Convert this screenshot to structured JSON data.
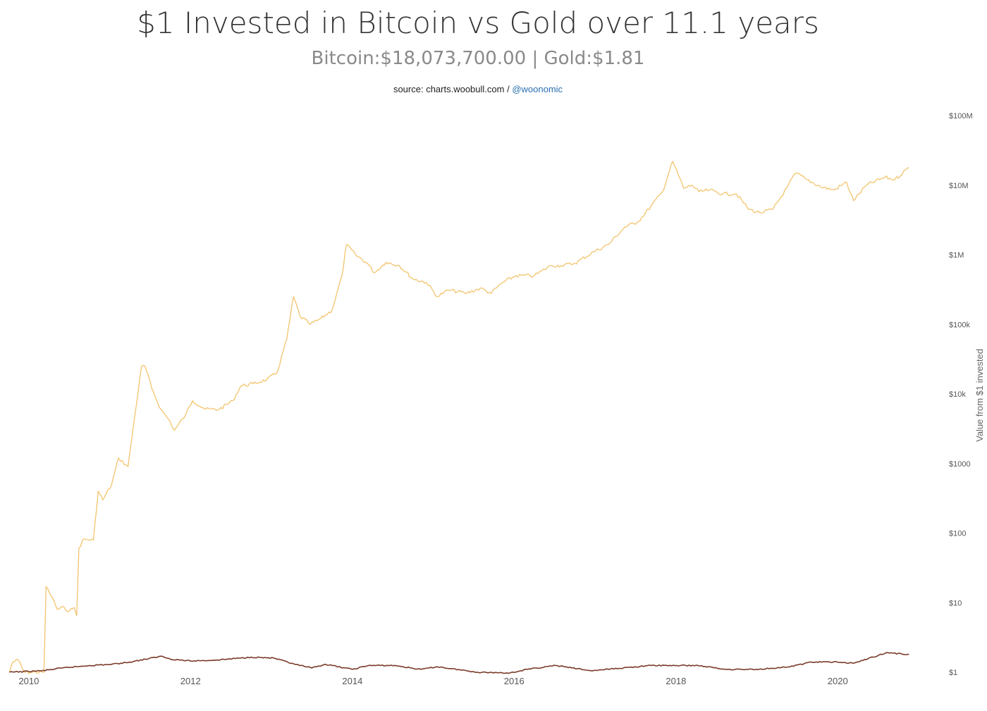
{
  "chart_data": {
    "type": "line",
    "title": "$1 Invested in Bitcoin vs Gold over 11.1 years",
    "subtitle": "Bitcoin:$18,073,700.00 | Gold:$1.81",
    "source": {
      "text": "source: charts.woobull.com / ",
      "handle": "@woonomic"
    },
    "ylabel": "Value from $1 invested",
    "yscale": "log",
    "ylim": [
      1,
      100000000
    ],
    "xlim": [
      "2009-10-01",
      "2020-11-20"
    ],
    "y_ticks": [
      "$1",
      "$10",
      "$100",
      "$1000",
      "$10k",
      "$100k",
      "$1M",
      "$10M",
      "$100M"
    ],
    "x_ticks": [
      "2010",
      "2012",
      "2014",
      "2016",
      "2018",
      "2020"
    ],
    "grid": false,
    "legend": "none",
    "series": [
      {
        "color": "#f2c46d",
        "points": [
          [
            "2009-10-05",
            1.0
          ],
          [
            "2009-10-20",
            1.4
          ],
          [
            "2009-11-15",
            1.5
          ],
          [
            "2009-12-10",
            1.0
          ],
          [
            "2010-01-15",
            1.0
          ],
          [
            "2010-03-10",
            1.0
          ],
          [
            "2010-03-20",
            17
          ],
          [
            "2010-04-15",
            12
          ],
          [
            "2010-05-10",
            8
          ],
          [
            "2010-06-10",
            8.5
          ],
          [
            "2010-07-01",
            7.5
          ],
          [
            "2010-07-25",
            8.5
          ],
          [
            "2010-08-05",
            6.5
          ],
          [
            "2010-08-15",
            60
          ],
          [
            "2010-09-01",
            80
          ],
          [
            "2010-10-20",
            80
          ],
          [
            "2010-11-10",
            400
          ],
          [
            "2010-12-01",
            300
          ],
          [
            "2011-01-10",
            500
          ],
          [
            "2011-02-10",
            1200
          ],
          [
            "2011-03-25",
            900
          ],
          [
            "2011-04-25",
            5000
          ],
          [
            "2011-05-25",
            25000
          ],
          [
            "2011-06-10",
            25000
          ],
          [
            "2011-07-10",
            12000
          ],
          [
            "2011-08-20",
            6000
          ],
          [
            "2011-10-01",
            4000
          ],
          [
            "2011-10-20",
            3000
          ],
          [
            "2011-12-10",
            5000
          ],
          [
            "2012-01-10",
            8000
          ],
          [
            "2012-03-10",
            6000
          ],
          [
            "2012-05-10",
            6000
          ],
          [
            "2012-07-10",
            8000
          ],
          [
            "2012-08-15",
            13000
          ],
          [
            "2012-10-10",
            14000
          ],
          [
            "2012-12-10",
            16000
          ],
          [
            "2013-01-25",
            20000
          ],
          [
            "2013-03-10",
            60000
          ],
          [
            "2013-04-10",
            250000
          ],
          [
            "2013-05-10",
            130000
          ],
          [
            "2013-06-25",
            100000
          ],
          [
            "2013-08-10",
            120000
          ],
          [
            "2013-10-01",
            160000
          ],
          [
            "2013-11-15",
            500000
          ],
          [
            "2013-12-05",
            1400000
          ],
          [
            "2014-01-15",
            1000000
          ],
          [
            "2014-03-10",
            750000
          ],
          [
            "2014-04-10",
            550000
          ],
          [
            "2014-06-01",
            780000
          ],
          [
            "2014-08-01",
            700000
          ],
          [
            "2014-10-01",
            450000
          ],
          [
            "2014-12-01",
            400000
          ],
          [
            "2015-01-20",
            250000
          ],
          [
            "2015-03-10",
            310000
          ],
          [
            "2015-06-01",
            280000
          ],
          [
            "2015-08-01",
            330000
          ],
          [
            "2015-09-20",
            280000
          ],
          [
            "2015-11-10",
            400000
          ],
          [
            "2016-01-10",
            500000
          ],
          [
            "2016-04-01",
            500000
          ],
          [
            "2016-06-15",
            700000
          ],
          [
            "2016-08-01",
            700000
          ],
          [
            "2016-10-01",
            750000
          ],
          [
            "2016-12-25",
            1100000
          ],
          [
            "2017-03-01",
            1400000
          ],
          [
            "2017-05-15",
            2500000
          ],
          [
            "2017-07-15",
            3000000
          ],
          [
            "2017-09-10",
            5000000
          ],
          [
            "2017-11-01",
            8000000
          ],
          [
            "2017-12-17",
            22000000
          ],
          [
            "2018-02-05",
            9000000
          ],
          [
            "2018-03-15",
            10000000
          ],
          [
            "2018-04-15",
            8000000
          ],
          [
            "2018-06-01",
            8500000
          ],
          [
            "2018-08-01",
            7500000
          ],
          [
            "2018-10-01",
            7500000
          ],
          [
            "2018-11-25",
            4500000
          ],
          [
            "2019-01-15",
            4000000
          ],
          [
            "2019-03-15",
            4500000
          ],
          [
            "2019-05-15",
            9000000
          ],
          [
            "2019-06-26",
            15000000
          ],
          [
            "2019-08-15",
            12000000
          ],
          [
            "2019-10-15",
            9500000
          ],
          [
            "2019-12-15",
            8500000
          ],
          [
            "2020-02-10",
            11000000
          ],
          [
            "2020-03-12",
            6000000
          ],
          [
            "2020-05-10",
            10000000
          ],
          [
            "2020-08-01",
            13000000
          ],
          [
            "2020-09-15",
            12000000
          ],
          [
            "2020-11-18",
            18000000
          ]
        ]
      },
      {
        "color": "#7a3a28",
        "points": [
          [
            "2009-10-05",
            1.0
          ],
          [
            "2010-03-01",
            1.05
          ],
          [
            "2010-06-01",
            1.15
          ],
          [
            "2010-10-01",
            1.25
          ],
          [
            "2011-01-10",
            1.3
          ],
          [
            "2011-04-01",
            1.4
          ],
          [
            "2011-08-25",
            1.7
          ],
          [
            "2011-10-01",
            1.55
          ],
          [
            "2012-01-01",
            1.45
          ],
          [
            "2012-05-01",
            1.5
          ],
          [
            "2012-10-01",
            1.65
          ],
          [
            "2013-01-10",
            1.6
          ],
          [
            "2013-04-15",
            1.3
          ],
          [
            "2013-07-01",
            1.15
          ],
          [
            "2013-09-01",
            1.3
          ],
          [
            "2013-12-31",
            1.1
          ],
          [
            "2014-03-15",
            1.25
          ],
          [
            "2014-07-10",
            1.25
          ],
          [
            "2014-11-05",
            1.1
          ],
          [
            "2015-01-20",
            1.2
          ],
          [
            "2015-07-20",
            1.0
          ],
          [
            "2015-12-15",
            0.98
          ],
          [
            "2016-03-01",
            1.1
          ],
          [
            "2016-07-06",
            1.25
          ],
          [
            "2016-12-15",
            1.05
          ],
          [
            "2017-09-08",
            1.25
          ],
          [
            "2018-04-10",
            1.25
          ],
          [
            "2018-08-15",
            1.1
          ],
          [
            "2019-01-01",
            1.1
          ],
          [
            "2019-06-01",
            1.2
          ],
          [
            "2019-09-01",
            1.4
          ],
          [
            "2019-12-31",
            1.4
          ],
          [
            "2020-03-15",
            1.35
          ],
          [
            "2020-08-06",
            1.9
          ],
          [
            "2020-11-18",
            1.81
          ]
        ]
      }
    ]
  }
}
